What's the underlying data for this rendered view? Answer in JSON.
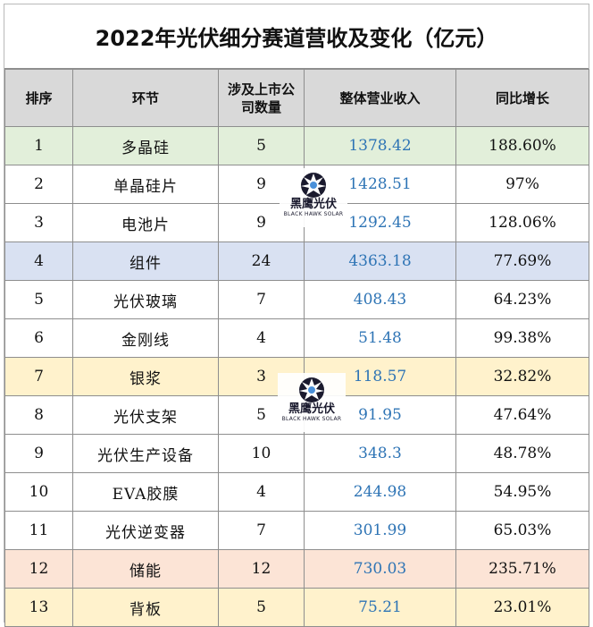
{
  "title": "2022年光伏细分赛道营收及变化（亿元）",
  "table": {
    "headers": [
      "排序",
      "环节",
      "涉及上市公司数量",
      "整体营业收入",
      "同比增长"
    ],
    "rows": [
      {
        "rank": "1",
        "segment": "多晶硅",
        "count": "5",
        "revenue": "1378.42",
        "growth": "188.60%"
      },
      {
        "rank": "2",
        "segment": "单晶硅片",
        "count": "9",
        "revenue": "1428.51",
        "growth": "97%"
      },
      {
        "rank": "3",
        "segment": "电池片",
        "count": "9",
        "revenue": "1292.45",
        "growth": "128.06%"
      },
      {
        "rank": "4",
        "segment": "组件",
        "count": "24",
        "revenue": "4363.18",
        "growth": "77.69%"
      },
      {
        "rank": "5",
        "segment": "光伏玻璃",
        "count": "7",
        "revenue": "408.43",
        "growth": "64.23%"
      },
      {
        "rank": "6",
        "segment": "金刚线",
        "count": "4",
        "revenue": "51.48",
        "growth": "99.38%"
      },
      {
        "rank": "7",
        "segment": "银浆",
        "count": "3",
        "revenue": "118.57",
        "growth": "32.82%"
      },
      {
        "rank": "8",
        "segment": "光伏支架",
        "count": "5",
        "revenue": "91.95",
        "growth": "47.64%"
      },
      {
        "rank": "9",
        "segment": "光伏生产设备",
        "count": "10",
        "revenue": "348.3",
        "growth": "48.78%"
      },
      {
        "rank": "10",
        "segment": "EVA胶膜",
        "count": "4",
        "revenue": "244.98",
        "growth": "54.95%"
      },
      {
        "rank": "11",
        "segment": "光伏逆变器",
        "count": "7",
        "revenue": "301.99",
        "growth": "65.03%"
      },
      {
        "rank": "12",
        "segment": "储能",
        "count": "12",
        "revenue": "730.03",
        "growth": "235.71%"
      },
      {
        "rank": "13",
        "segment": "背板",
        "count": "5",
        "revenue": "75.21",
        "growth": "23.01%"
      }
    ]
  },
  "watermark": {
    "text": "黑鹰光伏",
    "subtext": "BLACK HAWK SOLAR",
    "icon": "hawk-logo-icon"
  },
  "colors": {
    "header_bg": "#d9d9d9",
    "revenue_text": "#2e74b5",
    "highlight_green": "#e2efda",
    "highlight_blue": "#d9e1f2",
    "highlight_yellow": "#fff2cc",
    "highlight_pink": "#fce4d6"
  }
}
